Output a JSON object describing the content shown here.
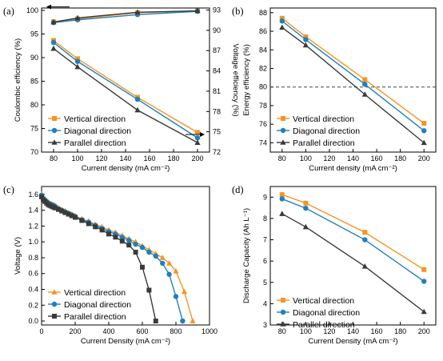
{
  "colors": {
    "vertical": "#f79420",
    "diagonal": "#1f7fc0",
    "parallel": "#3a3a3a",
    "frame": "#000000",
    "ref_line": "#444444"
  },
  "chart_data": [
    {
      "panel_label": "(a)",
      "type": "line",
      "xlabel": "Current density (mA cm⁻²)",
      "ylabel": "Coulombic efficiency (%)",
      "ylabel_right": "Voltage efficiency (%)",
      "x": [
        80,
        100,
        150,
        200
      ],
      "xlim": [
        70,
        210
      ],
      "xticks": [
        80,
        100,
        120,
        140,
        160,
        180,
        200
      ],
      "ylim": [
        70,
        100.5
      ],
      "yticks": [
        70,
        75,
        80,
        85,
        90,
        95,
        100
      ],
      "ylim_right": [
        72,
        93.3
      ],
      "yticks_right": [
        72,
        75,
        78,
        81,
        84,
        87,
        90,
        93
      ],
      "legend_position": "bottom-left",
      "arrows": [
        "left",
        "right"
      ],
      "series": [
        {
          "name": "Vertical direction",
          "key": "vertical",
          "marker": "square",
          "axis": "left",
          "values": [
            97.6,
            98.2,
            99.5,
            99.9
          ]
        },
        {
          "name": "Diagonal direction",
          "key": "diagonal",
          "marker": "circle",
          "axis": "left",
          "values": [
            97.4,
            98.0,
            99.1,
            99.8
          ]
        },
        {
          "name": "Parallel direction",
          "key": "parallel",
          "marker": "triangle",
          "axis": "left",
          "values": [
            97.5,
            98.4,
            99.6,
            99.9
          ]
        },
        {
          "name": "Vertical direction",
          "key": "vertical",
          "marker": "square",
          "axis": "right",
          "values": [
            88.5,
            85.8,
            80.1,
            74.9
          ]
        },
        {
          "name": "Diagonal direction",
          "key": "diagonal",
          "marker": "circle",
          "axis": "right",
          "values": [
            88.2,
            85.4,
            79.8,
            74.1
          ]
        },
        {
          "name": "Parallel direction",
          "key": "parallel",
          "marker": "triangle",
          "axis": "right",
          "values": [
            87.3,
            84.6,
            78.2,
            73.4
          ]
        }
      ]
    },
    {
      "panel_label": "(b)",
      "type": "line",
      "xlabel": "Current density (mA cm⁻²)",
      "ylabel": "Energy efficiency (%)",
      "x": [
        80,
        100,
        150,
        200
      ],
      "xlim": [
        70,
        210
      ],
      "xticks": [
        80,
        100,
        120,
        140,
        160,
        180,
        200
      ],
      "ylim": [
        73,
        88.5
      ],
      "yticks": [
        74,
        76,
        78,
        80,
        82,
        84,
        86,
        88
      ],
      "ref_line_y": 80,
      "legend_position": "bottom-left",
      "series": [
        {
          "name": "Vertical direction",
          "key": "vertical",
          "marker": "square",
          "values": [
            87.4,
            85.4,
            80.8,
            76.1
          ]
        },
        {
          "name": "Diagonal direction",
          "key": "diagonal",
          "marker": "circle",
          "values": [
            87.1,
            85.1,
            80.3,
            75.3
          ]
        },
        {
          "name": "Parallel direction",
          "key": "parallel",
          "marker": "triangle",
          "values": [
            86.4,
            84.5,
            79.2,
            74.0
          ]
        }
      ]
    },
    {
      "panel_label": "(c)",
      "type": "line",
      "xlabel": "Current Density (mA cm⁻²)",
      "ylabel": "Voltage (V)",
      "xlim": [
        0,
        1000
      ],
      "xticks": [
        0,
        200,
        400,
        600,
        800,
        1000
      ],
      "ylim": [
        -0.05,
        1.7
      ],
      "yticks": [
        0.0,
        0.2,
        0.4,
        0.6,
        0.8,
        1.0,
        1.2,
        1.4,
        1.6
      ],
      "legend_position": "bottom-left",
      "series": [
        {
          "name": "Vertical direction",
          "key": "vertical",
          "marker": "triangle",
          "x": [
            0,
            10,
            20,
            30,
            40,
            50,
            60,
            70,
            80,
            100,
            120,
            140,
            160,
            180,
            200,
            240,
            280,
            320,
            360,
            400,
            440,
            480,
            520,
            560,
            600,
            640,
            680,
            720,
            760,
            800,
            850,
            900
          ],
          "y": [
            1.6,
            1.56,
            1.54,
            1.52,
            1.5,
            1.49,
            1.48,
            1.47,
            1.46,
            1.43,
            1.41,
            1.39,
            1.37,
            1.35,
            1.33,
            1.29,
            1.26,
            1.22,
            1.19,
            1.15,
            1.12,
            1.08,
            1.04,
            1.0,
            0.95,
            0.9,
            0.85,
            0.8,
            0.73,
            0.63,
            0.37,
            0.0
          ]
        },
        {
          "name": "Diagonal direction",
          "key": "diagonal",
          "marker": "circle",
          "x": [
            0,
            10,
            20,
            30,
            40,
            50,
            60,
            70,
            80,
            100,
            120,
            140,
            160,
            180,
            200,
            240,
            280,
            320,
            360,
            400,
            440,
            480,
            520,
            560,
            600,
            640,
            680,
            720,
            760,
            800,
            840
          ],
          "y": [
            1.59,
            1.55,
            1.53,
            1.51,
            1.49,
            1.48,
            1.47,
            1.46,
            1.45,
            1.42,
            1.4,
            1.38,
            1.36,
            1.34,
            1.32,
            1.28,
            1.25,
            1.21,
            1.17,
            1.13,
            1.1,
            1.06,
            1.02,
            0.97,
            0.93,
            0.87,
            0.82,
            0.73,
            0.59,
            0.31,
            0.0
          ]
        },
        {
          "name": "Parallel direction",
          "key": "parallel",
          "marker": "square",
          "x": [
            0,
            10,
            20,
            30,
            40,
            50,
            60,
            70,
            80,
            100,
            120,
            140,
            160,
            180,
            200,
            240,
            280,
            320,
            360,
            400,
            440,
            480,
            520,
            560,
            600,
            640,
            680
          ],
          "y": [
            1.57,
            1.53,
            1.51,
            1.49,
            1.47,
            1.46,
            1.45,
            1.44,
            1.43,
            1.41,
            1.39,
            1.37,
            1.35,
            1.33,
            1.31,
            1.27,
            1.23,
            1.19,
            1.15,
            1.1,
            1.06,
            1.01,
            0.96,
            0.87,
            0.68,
            0.39,
            0.0
          ]
        }
      ]
    },
    {
      "panel_label": "(d)",
      "type": "line",
      "xlabel": "Current Density (mA cm⁻²)",
      "ylabel": "Discharge Capacity (Ah L⁻¹)",
      "x": [
        80,
        100,
        150,
        200
      ],
      "xlim": [
        70,
        210
      ],
      "xticks": [
        80,
        100,
        120,
        140,
        160,
        180,
        200
      ],
      "ylim": [
        3,
        9.5
      ],
      "yticks": [
        3,
        4,
        5,
        6,
        7,
        8,
        9
      ],
      "legend_position": "bottom-left",
      "series": [
        {
          "name": "Vertical direction",
          "key": "vertical",
          "marker": "square",
          "values": [
            9.12,
            8.72,
            7.35,
            5.6
          ]
        },
        {
          "name": "Diagonal direction",
          "key": "diagonal",
          "marker": "circle",
          "values": [
            8.92,
            8.48,
            7.0,
            5.05
          ]
        },
        {
          "name": "Parallel direction",
          "key": "parallel",
          "marker": "triangle",
          "values": [
            8.22,
            7.6,
            5.75,
            3.62
          ]
        }
      ]
    }
  ]
}
